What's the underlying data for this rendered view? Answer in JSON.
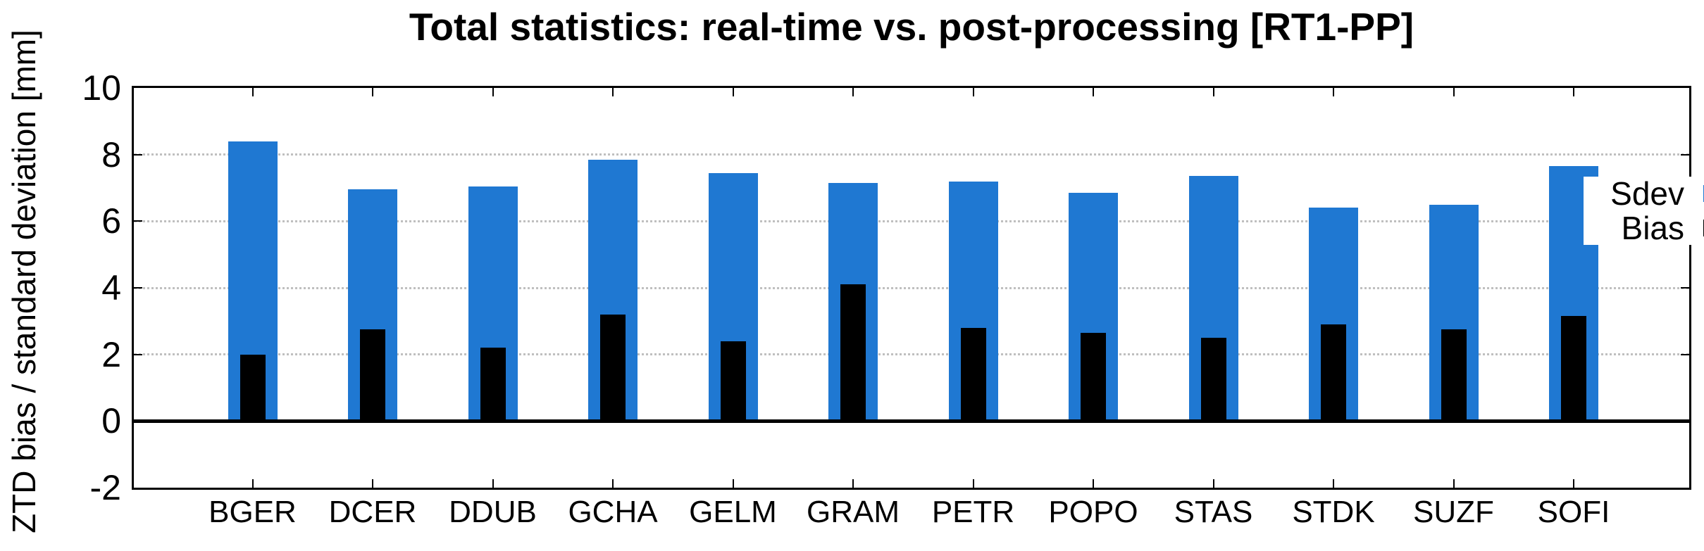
{
  "title": "Total statistics: real-time vs. post-processing [RT1-PP]",
  "chart_data": {
    "type": "bar",
    "title": "Total statistics: real-time vs. post-processing [RT1-PP]",
    "xlabel": "",
    "ylabel": "ZTD bias / standard deviation [mm]",
    "ylim": [
      -2,
      10
    ],
    "yticks": [
      10,
      8,
      6,
      4,
      2,
      0,
      -2
    ],
    "grid_values": [
      8,
      6,
      4,
      2
    ],
    "grid": "dotted horizontal",
    "legend_position": "top-right-inside",
    "baseline": 0,
    "categories": [
      "BGER",
      "DCER",
      "DDUB",
      "GCHA",
      "GELM",
      "GRAM",
      "PETR",
      "POPO",
      "STAS",
      "STDK",
      "SUZF",
      "SOFI"
    ],
    "series": [
      {
        "name": "Sdev",
        "color": "#1F78D2",
        "values": [
          8.4,
          6.95,
          7.05,
          7.85,
          7.45,
          7.15,
          7.2,
          6.85,
          7.35,
          6.4,
          6.5,
          7.65
        ]
      },
      {
        "name": "Bias",
        "color": "#000000",
        "values": [
          2.0,
          2.75,
          2.2,
          3.2,
          2.4,
          4.1,
          2.8,
          2.65,
          2.5,
          2.9,
          2.75,
          3.15
        ]
      }
    ]
  },
  "colors": {
    "sdev_bar": "#1F78D2",
    "bias_bar": "#000000",
    "axis": "#000000",
    "gridline": "#bfbfbf",
    "background": "#ffffff"
  }
}
